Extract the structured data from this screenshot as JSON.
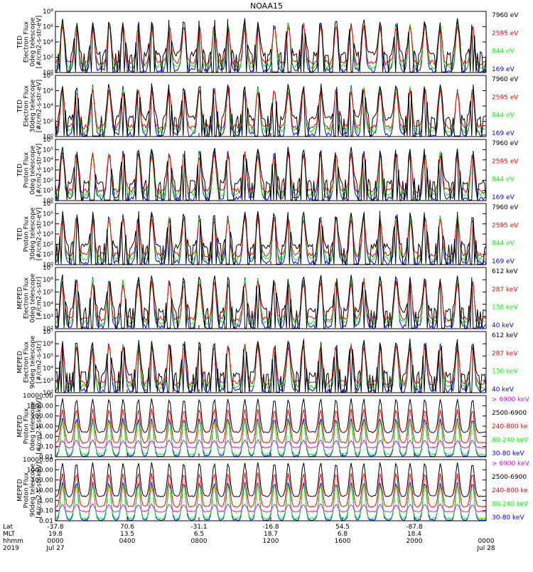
{
  "title": "NOAA15",
  "colors": {
    "blue": "#0000ff",
    "red": "#ff0000",
    "green": "#00ff00",
    "black": "#000000",
    "magenta": "#ff00ff"
  },
  "chart_data": [
    {
      "type": "line",
      "ylabel": [
        "TED",
        "Electron Flux",
        "0deg telescope",
        "[#/cm2-s-str-eV]"
      ],
      "yticks": [
        "10⁸",
        "10⁶",
        "10⁴",
        "10²",
        "10⁰"
      ],
      "yscale": "log",
      "ylim": [
        1,
        100000000
      ],
      "series": [
        {
          "name": "7960 eV",
          "color": "#000000"
        },
        {
          "name": "2595 eV",
          "color": "#ff0000"
        },
        {
          "name": "844 eV",
          "color": "#00ff00"
        },
        {
          "name": "169 eV",
          "color": "#0000ff"
        }
      ]
    },
    {
      "type": "line",
      "ylabel": [
        "TED",
        "Electron Flux",
        "30deg telescope",
        "[#/cm2-s-str-eV]"
      ],
      "yticks": [
        "10⁸",
        "10⁶",
        "10⁴",
        "10²",
        "10⁰"
      ],
      "yscale": "log",
      "ylim": [
        1,
        100000000
      ],
      "series": [
        {
          "name": "7960 eV",
          "color": "#000000"
        },
        {
          "name": "2595 eV",
          "color": "#ff0000"
        },
        {
          "name": "844 eV",
          "color": "#00ff00"
        },
        {
          "name": "169 eV",
          "color": "#0000ff"
        }
      ]
    },
    {
      "type": "line",
      "ylabel": [
        "TED",
        "Proton Flux",
        "0deg telescope",
        "[#/cm2-s-str-eV]"
      ],
      "yticks": [
        "10⁶",
        "10⁵",
        "10⁴",
        "10³",
        "10²",
        "10¹",
        "10⁰"
      ],
      "yscale": "log",
      "ylim": [
        1,
        1000000
      ],
      "series": [
        {
          "name": "7960 eV",
          "color": "#000000"
        },
        {
          "name": "2595 eV",
          "color": "#ff0000"
        },
        {
          "name": "844 eV",
          "color": "#00ff00"
        },
        {
          "name": "169 eV",
          "color": "#0000ff"
        }
      ]
    },
    {
      "type": "line",
      "ylabel": [
        "TED",
        "Proton Flux",
        "30deg telescope",
        "[#/cm2-s-str-eV]"
      ],
      "yticks": [
        "10⁶",
        "10⁵",
        "10⁴",
        "10³",
        "10²",
        "10¹",
        "10⁰"
      ],
      "yscale": "log",
      "ylim": [
        1,
        1000000
      ],
      "series": [
        {
          "name": "7960 eV",
          "color": "#000000"
        },
        {
          "name": "2595 eV",
          "color": "#ff0000"
        },
        {
          "name": "844 eV",
          "color": "#00ff00"
        },
        {
          "name": "169 eV",
          "color": "#0000ff"
        }
      ]
    },
    {
      "type": "line",
      "ylabel": [
        "MEPED",
        "Electron Flux",
        "0deg telescope",
        "[#/cm2-s-str]"
      ],
      "yticks": [
        "10⁷",
        "10⁶",
        "10⁵",
        "10⁴",
        "10³",
        "10²"
      ],
      "yscale": "log",
      "ylim": [
        100,
        10000000
      ],
      "series": [
        {
          "name": "612 keV",
          "color": "#000000"
        },
        {
          "name": "287 keV",
          "color": "#ff0000"
        },
        {
          "name": "130 keV",
          "color": "#00ff00"
        },
        {
          "name": "40 keV",
          "color": "#0000ff"
        }
      ]
    },
    {
      "type": "line",
      "ylabel": [
        "MEPED",
        "Electron Flux",
        "90deg telescope",
        "[#/cm2-s-str]"
      ],
      "yticks": [
        "10⁷",
        "10⁶",
        "10⁵",
        "10⁴",
        "10³",
        "10²"
      ],
      "yscale": "log",
      "ylim": [
        100,
        10000000
      ],
      "series": [
        {
          "name": "612 keV",
          "color": "#000000"
        },
        {
          "name": "287 keV",
          "color": "#ff0000"
        },
        {
          "name": "130 keV",
          "color": "#00ff00"
        },
        {
          "name": "40 keV",
          "color": "#0000ff"
        }
      ]
    },
    {
      "type": "line",
      "ylabel": [
        "MEPED",
        "Proton Flux",
        "0deg telescope",
        "[#/cm2-s-str-keV]"
      ],
      "yticks": [
        "10000.00",
        "1000.00",
        "100.00",
        "10.00",
        "1.00",
        "0.10",
        "0.01"
      ],
      "yscale": "log",
      "ylim": [
        0.01,
        10000
      ],
      "series": [
        {
          "name": "> 6900 keV",
          "color": "#ff00ff"
        },
        {
          "name": "2500-6900",
          "color": "#000000"
        },
        {
          "name": "240-800 ke",
          "color": "#ff0000"
        },
        {
          "name": "80-240 keV",
          "color": "#00ff00"
        },
        {
          "name": "30-80 keV",
          "color": "#0000ff"
        }
      ]
    },
    {
      "type": "line",
      "ylabel": [
        "MEPED",
        "Proton Flux",
        "90deg telescope",
        "[#/cm2-s-str-keV]"
      ],
      "yticks": [
        "10000.00",
        "1000.00",
        "100.00",
        "10.00",
        "1.00",
        "0.10",
        "0.01"
      ],
      "yscale": "log",
      "ylim": [
        0.01,
        10000
      ],
      "series": [
        {
          "name": "> 6900 keV",
          "color": "#ff00ff"
        },
        {
          "name": "2500-6900",
          "color": "#000000"
        },
        {
          "name": "240-800 ke",
          "color": "#ff0000"
        },
        {
          "name": "80-240 keV",
          "color": "#00ff00"
        },
        {
          "name": "30-80 keV",
          "color": "#0000ff"
        }
      ]
    }
  ],
  "xaxis": {
    "row_labels": [
      "Lat",
      "MLT",
      "hhmm",
      "2019"
    ],
    "ticks": [
      {
        "frac": 0.0,
        "lat": "-37.8",
        "mlt": "19.8",
        "hhmm": "0000",
        "date": "Jul 27"
      },
      {
        "frac": 0.1667,
        "lat": "70.6",
        "mlt": "13.5",
        "hhmm": "0400",
        "date": ""
      },
      {
        "frac": 0.3333,
        "lat": "-31.1",
        "mlt": "6.5",
        "hhmm": "0800",
        "date": ""
      },
      {
        "frac": 0.5,
        "lat": "-16.8",
        "mlt": "18.7",
        "hhmm": "1200",
        "date": ""
      },
      {
        "frac": 0.6667,
        "lat": "54.5",
        "mlt": "6.8",
        "hhmm": "1600",
        "date": ""
      },
      {
        "frac": 0.8333,
        "lat": "-87.8",
        "mlt": "18.4",
        "hhmm": "2000",
        "date": ""
      },
      {
        "frac": 1.0,
        "lat": "",
        "mlt": "",
        "hhmm": "0000",
        "date": "Jul 28"
      }
    ]
  }
}
